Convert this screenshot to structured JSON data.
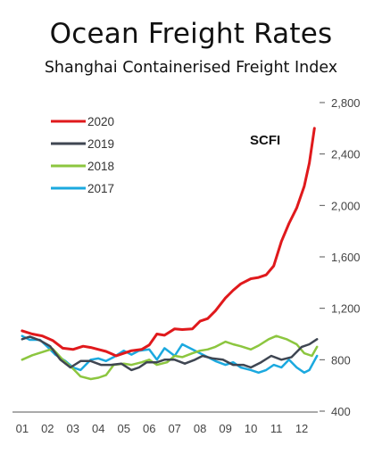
{
  "title": "Ocean Freight Rates",
  "subtitle": "Shanghai Containerised Freight Index",
  "chart_data": {
    "type": "line",
    "annotation": "SCFI",
    "x_tick_labels": [
      "01",
      "02",
      "03",
      "04",
      "05",
      "06",
      "07",
      "08",
      "09",
      "10",
      "11",
      "12"
    ],
    "x_domain": [
      0.9,
      12.7
    ],
    "y_tick_labels": [
      "400",
      "800",
      "1,200",
      "1,600",
      "2,000",
      "2,400",
      "2,800"
    ],
    "y_ticks": [
      400,
      800,
      1200,
      1600,
      2000,
      2400,
      2800
    ],
    "ylim": [
      400,
      2800
    ],
    "y_axis_side": "right",
    "grid": false,
    "legend_position": "top-left",
    "series": [
      {
        "name": "2020",
        "color": "#e0191c",
        "width": 3,
        "points": [
          [
            1,
            1025
          ],
          [
            1.4,
            1000
          ],
          [
            1.8,
            985
          ],
          [
            2.2,
            950
          ],
          [
            2.6,
            890
          ],
          [
            3.0,
            880
          ],
          [
            3.4,
            905
          ],
          [
            3.7,
            895
          ],
          [
            4.0,
            880
          ],
          [
            4.3,
            865
          ],
          [
            4.7,
            830
          ],
          [
            5.0,
            850
          ],
          [
            5.3,
            870
          ],
          [
            5.7,
            880
          ],
          [
            6.0,
            915
          ],
          [
            6.3,
            1000
          ],
          [
            6.6,
            990
          ],
          [
            7.0,
            1040
          ],
          [
            7.3,
            1035
          ],
          [
            7.7,
            1040
          ],
          [
            8.0,
            1100
          ],
          [
            8.3,
            1120
          ],
          [
            8.6,
            1180
          ],
          [
            9.0,
            1280
          ],
          [
            9.3,
            1340
          ],
          [
            9.6,
            1390
          ],
          [
            10.0,
            1430
          ],
          [
            10.3,
            1440
          ],
          [
            10.6,
            1460
          ],
          [
            10.9,
            1530
          ],
          [
            11.2,
            1720
          ],
          [
            11.5,
            1860
          ],
          [
            11.8,
            1980
          ],
          [
            12.1,
            2150
          ],
          [
            12.3,
            2330
          ],
          [
            12.5,
            2600
          ]
        ]
      },
      {
        "name": "2019",
        "color": "#3f4652",
        "width": 2.5,
        "points": [
          [
            1,
            960
          ],
          [
            1.3,
            980
          ],
          [
            1.7,
            950
          ],
          [
            2.1,
            905
          ],
          [
            2.5,
            800
          ],
          [
            2.9,
            740
          ],
          [
            3.3,
            790
          ],
          [
            3.7,
            790
          ],
          [
            4.1,
            760
          ],
          [
            4.5,
            760
          ],
          [
            4.9,
            770
          ],
          [
            5.3,
            720
          ],
          [
            5.6,
            740
          ],
          [
            5.9,
            780
          ],
          [
            6.3,
            780
          ],
          [
            6.6,
            800
          ],
          [
            7.0,
            800
          ],
          [
            7.4,
            770
          ],
          [
            7.8,
            800
          ],
          [
            8.1,
            830
          ],
          [
            8.5,
            810
          ],
          [
            8.9,
            800
          ],
          [
            9.3,
            760
          ],
          [
            9.7,
            760
          ],
          [
            10.0,
            740
          ],
          [
            10.4,
            780
          ],
          [
            10.8,
            830
          ],
          [
            11.2,
            800
          ],
          [
            11.6,
            820
          ],
          [
            12.0,
            900
          ],
          [
            12.3,
            920
          ],
          [
            12.6,
            960
          ]
        ]
      },
      {
        "name": "2018",
        "color": "#8cc63f",
        "width": 2.5,
        "points": [
          [
            1,
            800
          ],
          [
            1.4,
            835
          ],
          [
            1.8,
            860
          ],
          [
            2.2,
            885
          ],
          [
            2.6,
            800
          ],
          [
            3.0,
            730
          ],
          [
            3.3,
            670
          ],
          [
            3.7,
            650
          ],
          [
            4.0,
            660
          ],
          [
            4.3,
            680
          ],
          [
            4.6,
            760
          ],
          [
            5.0,
            770
          ],
          [
            5.3,
            760
          ],
          [
            5.7,
            780
          ],
          [
            6.0,
            800
          ],
          [
            6.3,
            760
          ],
          [
            6.7,
            780
          ],
          [
            7.0,
            830
          ],
          [
            7.3,
            820
          ],
          [
            7.7,
            850
          ],
          [
            8.0,
            870
          ],
          [
            8.3,
            880
          ],
          [
            8.6,
            900
          ],
          [
            9.0,
            940
          ],
          [
            9.3,
            920
          ],
          [
            9.6,
            905
          ],
          [
            10.0,
            880
          ],
          [
            10.3,
            910
          ],
          [
            10.7,
            960
          ],
          [
            11.0,
            985
          ],
          [
            11.4,
            960
          ],
          [
            11.8,
            920
          ],
          [
            12.1,
            850
          ],
          [
            12.4,
            830
          ],
          [
            12.6,
            900
          ]
        ]
      },
      {
        "name": "2017",
        "color": "#1ba9df",
        "width": 2.5,
        "points": [
          [
            1,
            985
          ],
          [
            1.3,
            955
          ],
          [
            1.7,
            955
          ],
          [
            2.0,
            900
          ],
          [
            2.3,
            840
          ],
          [
            2.7,
            790
          ],
          [
            3.0,
            740
          ],
          [
            3.3,
            720
          ],
          [
            3.7,
            800
          ],
          [
            4.0,
            810
          ],
          [
            4.3,
            790
          ],
          [
            4.6,
            820
          ],
          [
            5.0,
            870
          ],
          [
            5.3,
            840
          ],
          [
            5.6,
            870
          ],
          [
            6.0,
            880
          ],
          [
            6.3,
            800
          ],
          [
            6.6,
            890
          ],
          [
            7.0,
            830
          ],
          [
            7.3,
            920
          ],
          [
            7.7,
            880
          ],
          [
            8.0,
            850
          ],
          [
            8.3,
            820
          ],
          [
            8.6,
            790
          ],
          [
            9.0,
            760
          ],
          [
            9.3,
            780
          ],
          [
            9.6,
            740
          ],
          [
            10.0,
            720
          ],
          [
            10.3,
            700
          ],
          [
            10.6,
            720
          ],
          [
            10.9,
            760
          ],
          [
            11.2,
            740
          ],
          [
            11.5,
            800
          ],
          [
            11.8,
            740
          ],
          [
            12.1,
            700
          ],
          [
            12.3,
            720
          ],
          [
            12.6,
            830
          ]
        ]
      }
    ]
  }
}
